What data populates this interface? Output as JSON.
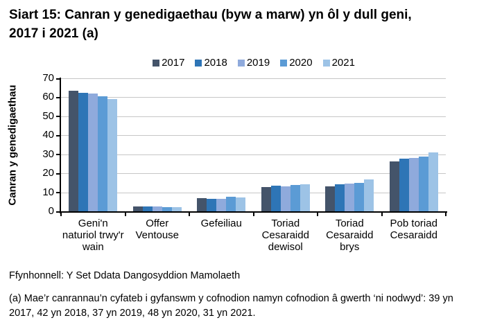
{
  "header": {
    "title": "Siart 15: Canran y genedigaethau (byw a marw) yn ôl y dull geni, 2017 i 2021 (a)"
  },
  "chart_data": {
    "type": "bar",
    "title": "Siart 15: Canran y genedigaethau (byw a marw) yn ôl y dull geni, 2017 i 2021 (a)",
    "xlabel": "",
    "ylabel": "Canran y genedigaethau",
    "ylim": [
      0,
      70
    ],
    "yticks": [
      0,
      10,
      20,
      30,
      40,
      50,
      60,
      70
    ],
    "grid": true,
    "legend_position": "top",
    "categories": [
      "Geni'n naturiol trwy'r wain",
      "Offer Ventouse",
      "Gefeiliau",
      "Toriad Cesaraidd dewisol",
      "Toriad Cesaraidd brys",
      "Pob toriad Cesaraidd"
    ],
    "series": [
      {
        "name": "2017",
        "color": "#44546A",
        "values": [
          63.4,
          2.7,
          7.1,
          12.7,
          13.3,
          26.3
        ]
      },
      {
        "name": "2018",
        "color": "#2E75B6",
        "values": [
          62.3,
          2.6,
          6.5,
          13.4,
          14.4,
          27.7
        ]
      },
      {
        "name": "2019",
        "color": "#8FAADC",
        "values": [
          62.0,
          2.5,
          6.5,
          13.3,
          14.7,
          27.9
        ]
      },
      {
        "name": "2020",
        "color": "#5B9BD5",
        "values": [
          60.5,
          2.3,
          7.8,
          13.7,
          15.1,
          28.7
        ]
      },
      {
        "name": "2021",
        "color": "#9DC3E6",
        "values": [
          59.0,
          2.2,
          7.2,
          14.1,
          16.9,
          31.1
        ]
      }
    ]
  },
  "footer": {
    "source": "Ffynhonnell: Y Set Ddata Dangosyddion Mamolaeth",
    "footnote": "(a) Mae’r canrannau’n cyfateb i gyfanswm y cofnodion namyn cofnodion â gwerth ‘ni nodwyd’: 39 yn 2017, 42 yn 2018, 37 yn 2019, 48 yn 2020, 31 yn 2021."
  },
  "colors": {
    "axis": "#000000",
    "grid": "#C6C6C6",
    "text": "#000000"
  }
}
